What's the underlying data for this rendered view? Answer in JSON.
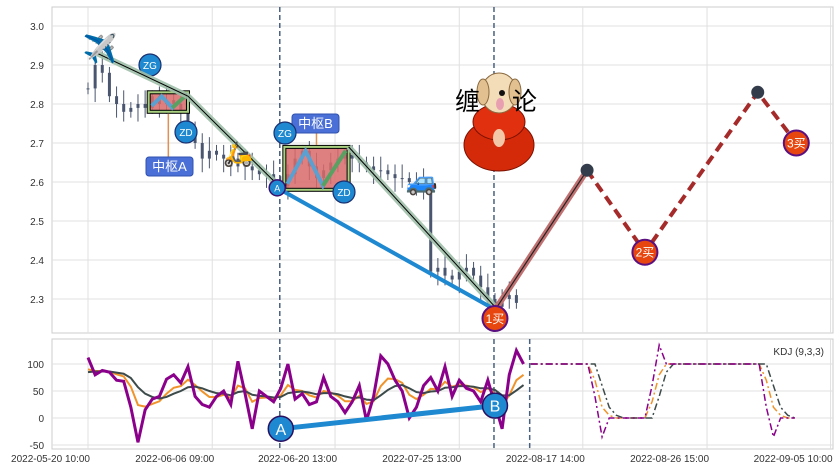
{
  "chart_data": [
    {
      "type": "candlestick",
      "panel": "price",
      "ylim": [
        2.21,
        3.05
      ],
      "y_ticks": [
        "3.0",
        "2.9",
        "2.8",
        "2.7",
        "2.6",
        "2.5",
        "2.4",
        "2.3"
      ],
      "y_tick_values": [
        3.0,
        2.9,
        2.8,
        2.7,
        2.6,
        2.5,
        2.4,
        2.3
      ],
      "grid": true,
      "closes": [
        2.84,
        2.9,
        2.88,
        2.82,
        2.8,
        2.78,
        2.79,
        2.8,
        2.79,
        2.82,
        2.8,
        2.81,
        2.8,
        2.78,
        2.74,
        2.7,
        2.66,
        2.68,
        2.67,
        2.66,
        2.64,
        2.66,
        2.64,
        2.63,
        2.62,
        2.62,
        2.6,
        2.59,
        2.62,
        2.66,
        2.68,
        2.64,
        2.61,
        2.63,
        2.65,
        2.66,
        2.67,
        2.66,
        2.65,
        2.64,
        2.63,
        2.63,
        2.62,
        2.61,
        2.61,
        2.6,
        2.6,
        2.58,
        2.37,
        2.38,
        2.36,
        2.35,
        2.37,
        2.38,
        2.36,
        2.33,
        2.3,
        2.28,
        2.3,
        2.31,
        2.29
      ],
      "bi_strokes": [
        [
          [
            1.3,
            2.93
          ],
          [
            14,
            2.82
          ],
          [
            27,
            2.585
          ]
        ],
        [
          [
            36.5,
            2.69
          ],
          [
            57,
            2.28
          ]
        ]
      ],
      "zhongshu": [
        {
          "label": "中枢A",
          "zg_label": "ZG",
          "zd_label": "ZD",
          "from": 8.5,
          "to": 14,
          "zg": 2.83,
          "zd": 2.78
        },
        {
          "label": "中枢B",
          "zg_label": "ZG",
          "zd_label": "ZD",
          "from": 27.5,
          "to": 36.5,
          "zg": 2.69,
          "zd": 2.58
        }
      ],
      "divergence_line": {
        "label": "A",
        "points": [
          [
            26.5,
            2.585
          ],
          [
            56.3,
            2.28
          ]
        ]
      },
      "up_stroke": [
        [
          57.3,
          2.28
        ],
        [
          69.9,
          2.63
        ]
      ],
      "projection": [
        [
          69.9,
          2.63
        ],
        [
          78,
          2.42
        ],
        [
          93.8,
          2.83
        ],
        [
          99.2,
          2.7
        ]
      ],
      "buy_points": [
        {
          "label": "1买",
          "x": 57,
          "y": 2.25
        },
        {
          "label": "2买",
          "x": 78,
          "y": 2.42
        },
        {
          "label": "3买",
          "x": 99.2,
          "y": 2.7
        }
      ],
      "logo_text": [
        "缠",
        "论"
      ],
      "icons": [
        "airplane-icon",
        "scooter-icon",
        "car-icon",
        "dog-monk-icon"
      ]
    },
    {
      "type": "line",
      "panel": "indicator",
      "title": "KDJ (9,3,3)",
      "ylim": [
        -52,
        142
      ],
      "y_ticks": [
        "100",
        "50",
        "0",
        "-50"
      ],
      "y_tick_values": [
        100,
        50,
        0,
        -50
      ],
      "x_ticks": [
        "2022-05-20 10:00",
        "2022-06-06 09:00",
        "2022-06-20 13:00",
        "2022-07-25 13:00",
        "2022-08-17 14:00",
        "2022-08-26 15:00",
        "2022-09-05 10:00"
      ],
      "grid": true,
      "series": [
        {
          "key": "k",
          "color": "#f0932b",
          "values": [
            90,
            87,
            87,
            86,
            81,
            77,
            58,
            24,
            21,
            26,
            31,
            45,
            56,
            59,
            71,
            61,
            49,
            39,
            39,
            43,
            37,
            60,
            55,
            30,
            37,
            38,
            35,
            42,
            61,
            52,
            50,
            42,
            38,
            50,
            47,
            41,
            31,
            31,
            41,
            26,
            31,
            59,
            73,
            72,
            65,
            43,
            35,
            43,
            54,
            53,
            67,
            58,
            62,
            60,
            57,
            48,
            55,
            45,
            23,
            42,
            70,
            80
          ],
          "projection": [
            100,
            100,
            100,
            100,
            100,
            100,
            100,
            100,
            100,
            70,
            20,
            5,
            0,
            0,
            0,
            0,
            0,
            30,
            80,
            100,
            100,
            100,
            100,
            100,
            100,
            100,
            100,
            100,
            100,
            100,
            100,
            100,
            100,
            70,
            20,
            5,
            0,
            0
          ]
        },
        {
          "key": "d",
          "color": "#3d4a4a",
          "values": [
            85,
            86,
            86,
            86,
            84,
            82,
            74,
            57,
            45,
            39,
            36,
            39,
            45,
            50,
            57,
            58,
            55,
            50,
            46,
            45,
            42,
            48,
            50,
            43,
            41,
            40,
            38,
            39,
            46,
            48,
            49,
            47,
            44,
            46,
            46,
            44,
            40,
            37,
            38,
            34,
            33,
            42,
            52,
            59,
            61,
            55,
            48,
            46,
            49,
            50,
            56,
            57,
            59,
            59,
            58,
            55,
            55,
            52,
            42,
            42,
            51,
            61
          ],
          "projection": [
            100,
            100,
            100,
            100,
            100,
            100,
            100,
            100,
            100,
            100,
            60,
            20,
            5,
            0,
            0,
            0,
            0,
            0,
            40,
            85,
            100,
            100,
            100,
            100,
            100,
            100,
            100,
            100,
            100,
            100,
            100,
            100,
            100,
            100,
            60,
            20,
            5,
            0
          ]
        },
        {
          "key": "j",
          "color": "#8b008b",
          "values": [
            112,
            80,
            88,
            85,
            70,
            68,
            20,
            -45,
            15,
            35,
            40,
            72,
            80,
            65,
            95,
            40,
            25,
            20,
            40,
            50,
            25,
            105,
            45,
            -20,
            50,
            40,
            30,
            55,
            100,
            35,
            45,
            25,
            30,
            75,
            40,
            30,
            10,
            30,
            60,
            -5,
            40,
            115,
            100,
            70,
            50,
            0,
            20,
            60,
            75,
            50,
            95,
            40,
            70,
            55,
            50,
            30,
            70,
            25,
            -20,
            80,
            125,
            100
          ],
          "projection": [
            100,
            100,
            100,
            100,
            100,
            100,
            100,
            100,
            100,
            40,
            -35,
            0,
            0,
            0,
            0,
            0,
            0,
            60,
            135,
            100,
            100,
            100,
            100,
            100,
            100,
            100,
            100,
            100,
            100,
            100,
            100,
            100,
            100,
            20,
            -35,
            0,
            0,
            0
          ]
        }
      ],
      "divergence_line": {
        "labels": [
          "A",
          "B"
        ],
        "points": [
          [
            27,
            -20
          ],
          [
            57,
            23
          ]
        ]
      }
    }
  ],
  "colors": {
    "candle": "#4a5670",
    "bi": "#9fbfa8",
    "blue": "#1e88d0",
    "red_stroke": "#a52a2a",
    "buy": "#e8460f",
    "buy_stroke": "#5a1080",
    "zhongshu_fill": "#d96a6a",
    "zhongshu_border": "#a8d080",
    "label_box": "#4a6fd6"
  }
}
